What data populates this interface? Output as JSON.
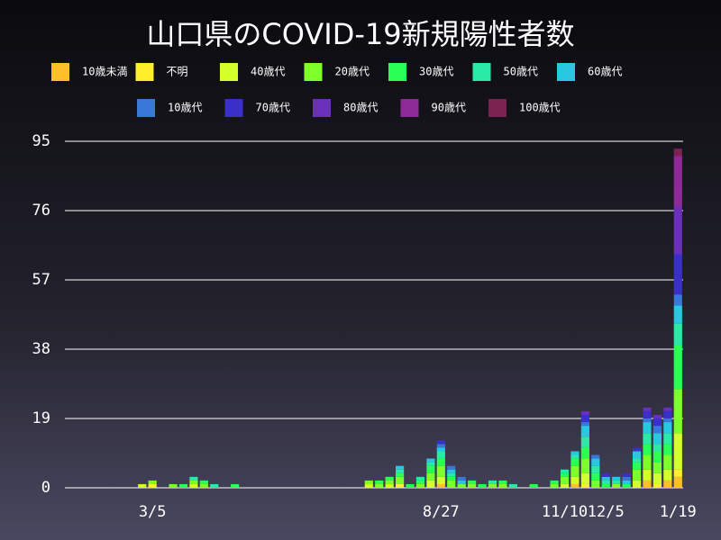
{
  "chart_data": {
    "type": "stacked-bar",
    "title": "山口県のCOVID-19新規陽性者数",
    "categories": [
      null,
      null,
      null,
      null,
      null,
      null,
      null,
      null,
      "3/5",
      null,
      null,
      null,
      null,
      null,
      null,
      null,
      null,
      null,
      null,
      null,
      null,
      null,
      null,
      null,
      null,
      null,
      null,
      null,
      null,
      null,
      null,
      null,
      null,
      null,
      null,
      null,
      "8/27",
      null,
      null,
      null,
      null,
      null,
      null,
      null,
      null,
      null,
      null,
      null,
      "11/10",
      null,
      null,
      null,
      "12/5",
      null,
      null,
      null,
      null,
      null,
      null,
      "1/19"
    ],
    "ylim": [
      0,
      95
    ],
    "yticks": [
      0,
      19,
      38,
      57,
      76,
      95
    ],
    "grid": true,
    "series": [
      {
        "name": "10歳未満",
        "color": "#ffbf2a",
        "values": [
          0,
          0,
          0,
          0,
          0,
          0,
          0,
          0,
          0,
          0,
          0,
          0,
          0,
          0,
          0,
          0,
          0,
          0,
          0,
          0,
          0,
          0,
          0,
          0,
          0,
          0,
          0,
          0,
          0,
          0,
          0,
          0,
          0,
          0,
          0,
          0,
          1,
          0,
          0,
          0,
          0,
          0,
          0,
          0,
          0,
          0,
          0,
          0,
          0,
          1,
          0,
          0,
          0,
          0,
          0,
          0,
          2,
          0,
          2,
          3
        ]
      },
      {
        "name": "不明",
        "color": "#ffef2a",
        "values": [
          0,
          0,
          0,
          0,
          0,
          0,
          0,
          0,
          1,
          0,
          0,
          0,
          0,
          0,
          0,
          0,
          0,
          0,
          0,
          0,
          0,
          0,
          0,
          0,
          0,
          0,
          0,
          0,
          0,
          0,
          0,
          0,
          1,
          0,
          0,
          0,
          0,
          0,
          0,
          0,
          0,
          0,
          0,
          0,
          0,
          0,
          0,
          0,
          0,
          0,
          1,
          0,
          0,
          0,
          0,
          0,
          0,
          1,
          0,
          2
        ]
      },
      {
        "name": "40歳代",
        "color": "#d4ff2a",
        "values": [
          0,
          0,
          0,
          0,
          0,
          0,
          0,
          1,
          0,
          0,
          0,
          0,
          1,
          0,
          0,
          0,
          0,
          0,
          0,
          0,
          0,
          0,
          0,
          0,
          0,
          0,
          0,
          0,
          0,
          1,
          0,
          1,
          0,
          0,
          0,
          2,
          2,
          0,
          0,
          0,
          0,
          0,
          0,
          0,
          0,
          0,
          0,
          0,
          1,
          2,
          3,
          0,
          0,
          0,
          0,
          2,
          3,
          3,
          3,
          10
        ]
      },
      {
        "name": "20歳代",
        "color": "#7fff2a",
        "values": [
          0,
          0,
          0,
          0,
          0,
          0,
          0,
          0,
          1,
          0,
          1,
          0,
          1,
          1,
          0,
          0,
          0,
          0,
          0,
          0,
          0,
          0,
          0,
          0,
          0,
          0,
          0,
          0,
          0,
          1,
          1,
          1,
          2,
          0,
          1,
          2,
          3,
          2,
          1,
          1,
          0,
          1,
          1,
          0,
          0,
          0,
          0,
          1,
          2,
          3,
          4,
          2,
          0,
          1,
          0,
          3,
          4,
          3,
          4,
          12
        ]
      },
      {
        "name": "30歳代",
        "color": "#2aff55",
        "values": [
          0,
          0,
          0,
          0,
          0,
          0,
          0,
          0,
          0,
          0,
          0,
          1,
          0,
          1,
          0,
          0,
          1,
          0,
          0,
          0,
          0,
          0,
          0,
          0,
          0,
          0,
          0,
          0,
          0,
          0,
          1,
          1,
          1,
          1,
          1,
          2,
          2,
          1,
          0,
          1,
          1,
          0,
          1,
          0,
          0,
          1,
          0,
          1,
          1,
          2,
          3,
          2,
          1,
          0,
          1,
          2,
          3,
          3,
          3,
          12
        ]
      },
      {
        "name": "50歳代",
        "color": "#2aeaa5",
        "values": [
          0,
          0,
          0,
          0,
          0,
          0,
          0,
          0,
          0,
          0,
          0,
          0,
          1,
          0,
          1,
          0,
          0,
          0,
          0,
          0,
          0,
          0,
          0,
          0,
          0,
          0,
          0,
          0,
          0,
          0,
          0,
          0,
          1,
          0,
          1,
          1,
          2,
          1,
          0,
          0,
          0,
          1,
          0,
          1,
          0,
          0,
          0,
          0,
          1,
          1,
          3,
          2,
          1,
          1,
          0,
          1,
          3,
          2,
          3,
          6
        ]
      },
      {
        "name": "60歳代",
        "color": "#2ac8e0",
        "values": [
          0,
          0,
          0,
          0,
          0,
          0,
          0,
          0,
          0,
          0,
          0,
          0,
          0,
          0,
          0,
          0,
          0,
          0,
          0,
          0,
          0,
          0,
          0,
          0,
          0,
          0,
          0,
          0,
          0,
          0,
          0,
          0,
          1,
          0,
          0,
          1,
          1,
          1,
          1,
          0,
          0,
          0,
          0,
          0,
          0,
          0,
          0,
          0,
          0,
          1,
          3,
          2,
          1,
          1,
          1,
          2,
          3,
          3,
          3,
          5
        ]
      },
      {
        "name": "10歳代",
        "color": "#3a78d8",
        "values": [
          0,
          0,
          0,
          0,
          0,
          0,
          0,
          0,
          0,
          0,
          0,
          0,
          0,
          0,
          0,
          0,
          0,
          0,
          0,
          0,
          0,
          0,
          0,
          0,
          0,
          0,
          0,
          0,
          0,
          0,
          0,
          0,
          0,
          0,
          0,
          0,
          1,
          1,
          1,
          0,
          0,
          0,
          0,
          0,
          0,
          0,
          0,
          0,
          0,
          0,
          1,
          1,
          0,
          0,
          1,
          0,
          1,
          2,
          1,
          3
        ]
      },
      {
        "name": "70歳代",
        "color": "#3a30c8",
        "values": [
          0,
          0,
          0,
          0,
          0,
          0,
          0,
          0,
          0,
          0,
          0,
          0,
          0,
          0,
          0,
          0,
          0,
          0,
          0,
          0,
          0,
          0,
          0,
          0,
          0,
          0,
          0,
          0,
          0,
          0,
          0,
          0,
          0,
          0,
          0,
          0,
          1,
          0,
          0,
          0,
          0,
          0,
          0,
          0,
          0,
          0,
          0,
          0,
          0,
          0,
          2,
          0,
          1,
          0,
          1,
          1,
          2,
          2,
          2,
          11
        ]
      },
      {
        "name": "80歳代",
        "color": "#6a30b8",
        "values": [
          0,
          0,
          0,
          0,
          0,
          0,
          0,
          0,
          0,
          0,
          0,
          0,
          0,
          0,
          0,
          0,
          0,
          0,
          0,
          0,
          0,
          0,
          0,
          0,
          0,
          0,
          0,
          0,
          0,
          0,
          0,
          0,
          0,
          0,
          0,
          0,
          0,
          0,
          0,
          0,
          0,
          0,
          0,
          0,
          0,
          0,
          0,
          0,
          0,
          0,
          1,
          0,
          0,
          0,
          0,
          0,
          1,
          1,
          1,
          13
        ]
      },
      {
        "name": "90歳代",
        "color": "#8e2a98",
        "values": [
          0,
          0,
          0,
          0,
          0,
          0,
          0,
          0,
          0,
          0,
          0,
          0,
          0,
          0,
          0,
          0,
          0,
          0,
          0,
          0,
          0,
          0,
          0,
          0,
          0,
          0,
          0,
          0,
          0,
          0,
          0,
          0,
          0,
          0,
          0,
          0,
          0,
          0,
          0,
          0,
          0,
          0,
          0,
          0,
          0,
          0,
          0,
          0,
          0,
          0,
          0,
          0,
          0,
          0,
          0,
          0,
          0,
          0,
          0,
          14
        ]
      },
      {
        "name": "100歳代",
        "color": "#7a2250",
        "values": [
          0,
          0,
          0,
          0,
          0,
          0,
          0,
          0,
          0,
          0,
          0,
          0,
          0,
          0,
          0,
          0,
          0,
          0,
          0,
          0,
          0,
          0,
          0,
          0,
          0,
          0,
          0,
          0,
          0,
          0,
          0,
          0,
          0,
          0,
          0,
          0,
          0,
          0,
          0,
          0,
          0,
          0,
          0,
          0,
          0,
          0,
          0,
          0,
          0,
          0,
          0,
          0,
          0,
          0,
          0,
          0,
          0,
          0,
          0,
          2
        ]
      }
    ]
  }
}
